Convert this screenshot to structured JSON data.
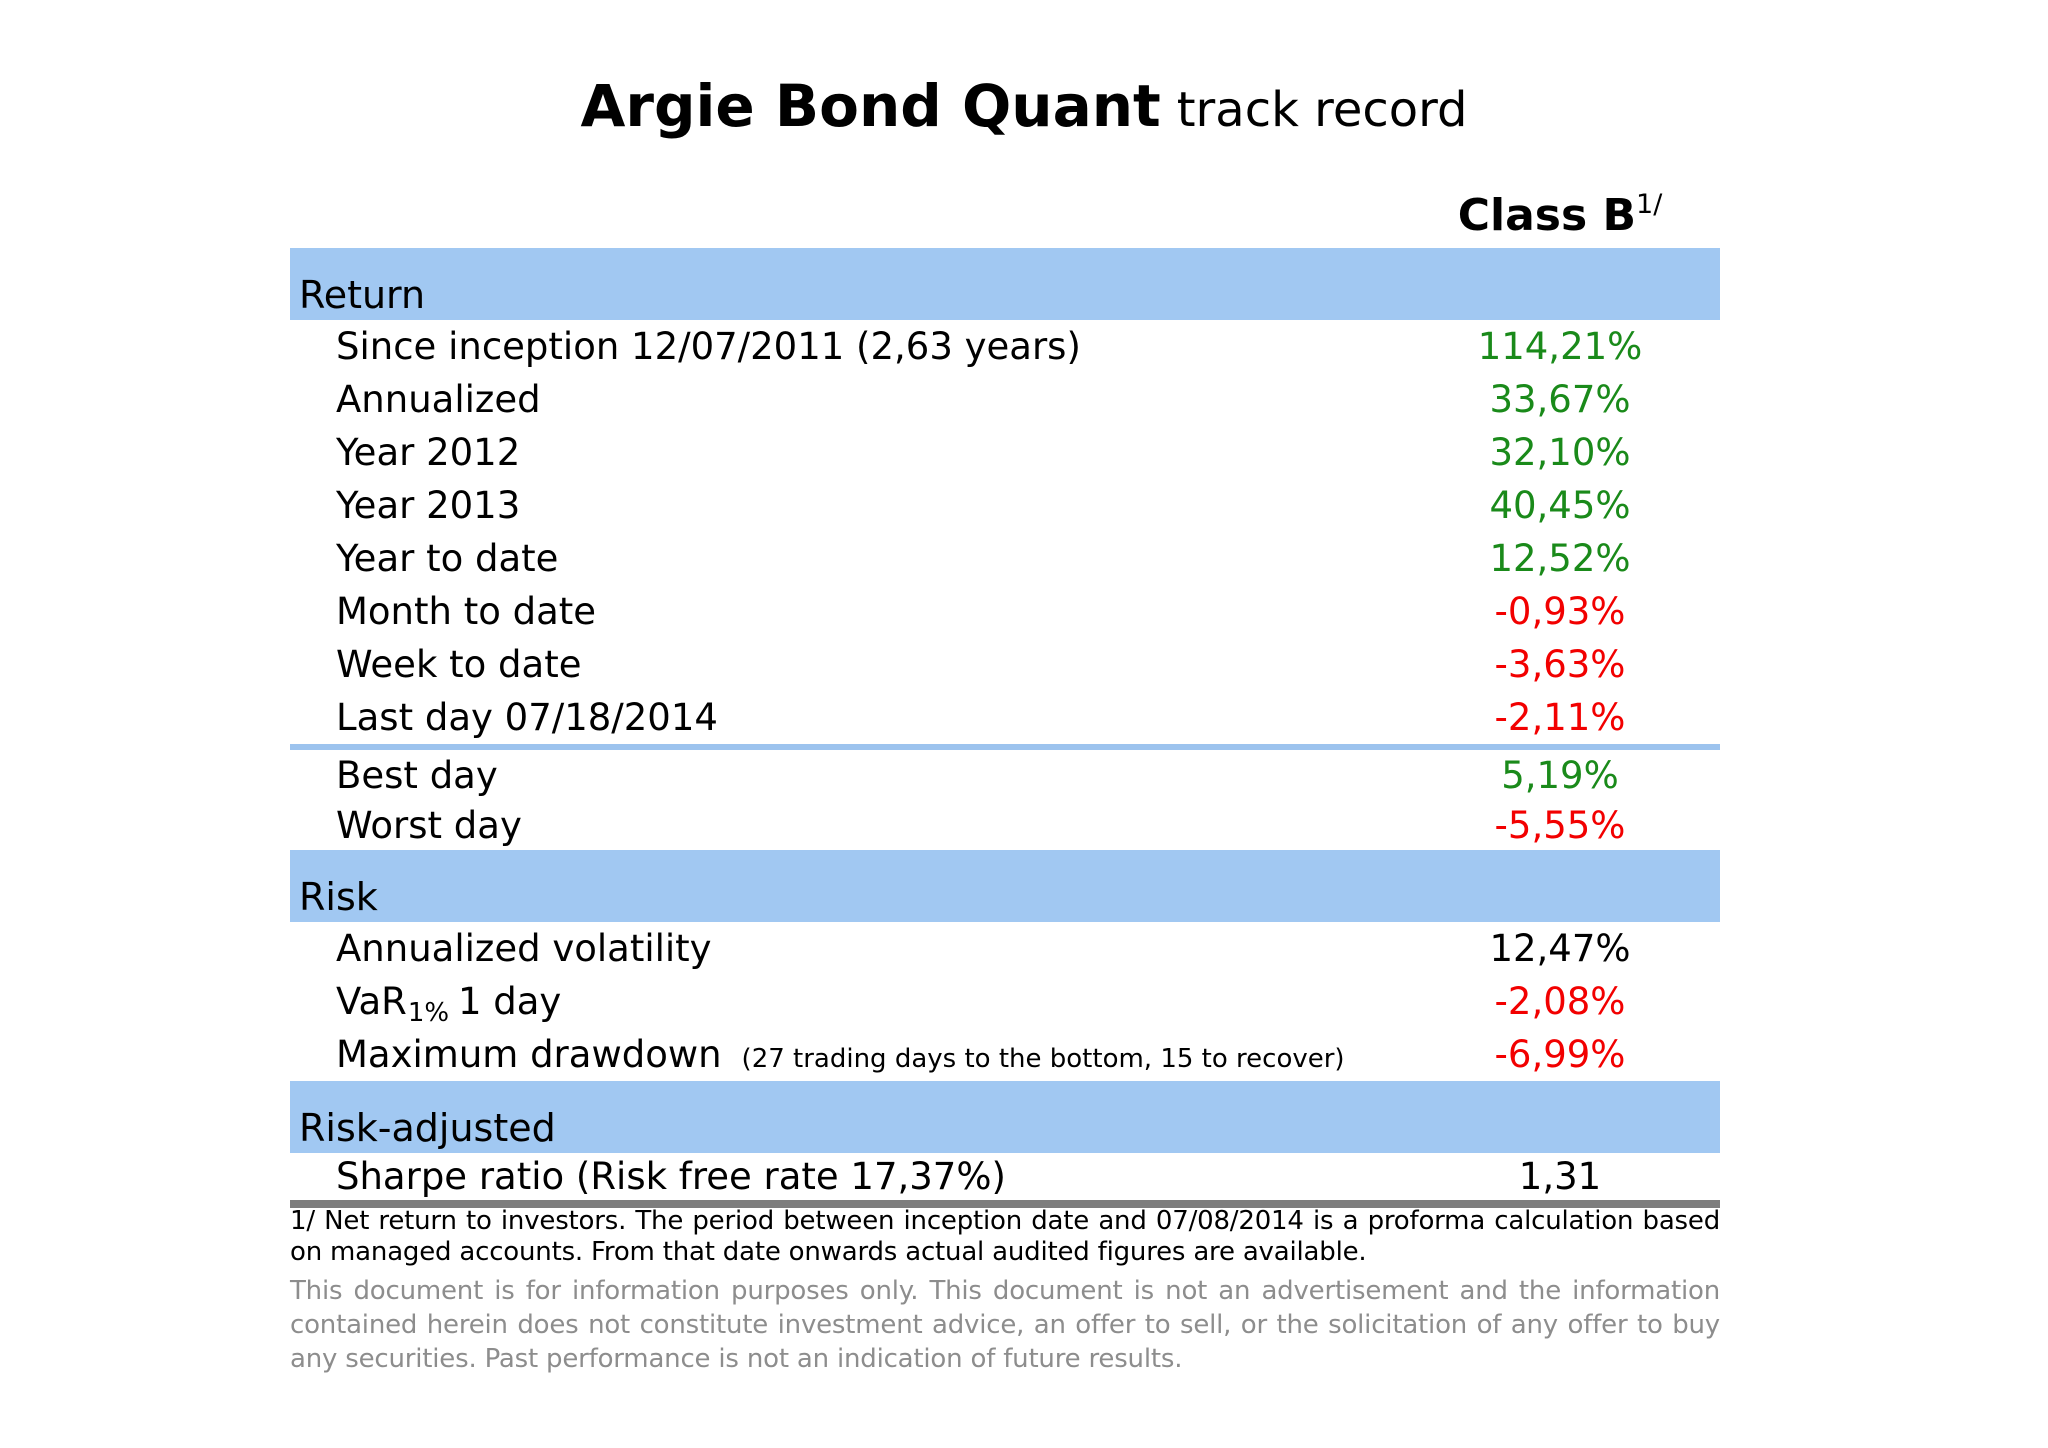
{
  "title": {
    "brand": "Argie Bond Quant",
    "suffix": "track record"
  },
  "column_header": {
    "label": "Class B",
    "footnote_ref": "1/"
  },
  "sections": [
    {
      "header": "Return",
      "rows": [
        {
          "label": "Since inception 12/07/2011 (2,63 years)",
          "value": "114,21%",
          "tone": "positive"
        },
        {
          "label": "Annualized",
          "value": "33,67%",
          "tone": "positive"
        },
        {
          "label": "Year 2012",
          "value": "32,10%",
          "tone": "positive"
        },
        {
          "label": "Year 2013",
          "value": "40,45%",
          "tone": "positive"
        },
        {
          "label": "Year to date",
          "value": "12,52%",
          "tone": "positive"
        },
        {
          "label": "Month to date",
          "value": "-0,93%",
          "tone": "negative"
        },
        {
          "label": "Week to date",
          "value": "-3,63%",
          "tone": "negative"
        },
        {
          "label": "Last day 07/18/2014",
          "value": "-2,11%",
          "tone": "negative"
        },
        {
          "label": "Best day",
          "value": "5,19%",
          "tone": "positive"
        },
        {
          "label": "Worst day",
          "value": "-5,55%",
          "tone": "negative"
        }
      ]
    },
    {
      "header": "Risk",
      "rows": [
        {
          "label": "Annualized volatility",
          "value": "12,47%",
          "tone": "neutral"
        },
        {
          "label_main": "VaR",
          "label_sub": "1%",
          "label_rest": "1 day",
          "value": "-2,08%",
          "tone": "negative"
        },
        {
          "label": "Maximum drawdown",
          "label_note": "(27 trading days to the bottom, 15 to recover)",
          "value": "-6,99%",
          "tone": "negative"
        }
      ]
    },
    {
      "header": "Risk-adjusted",
      "rows": [
        {
          "label": "Sharpe ratio (Risk free rate 17,37%)",
          "value": "1,31",
          "tone": "neutral"
        }
      ]
    }
  ],
  "footnote": "1/ Net return to investors. The period between inception date and 07/08/2014 is a proforma calculation based on managed accounts. From that date onwards actual audited figures are available.",
  "disclaimer": "This document is for information purposes only. This document is not an advertisement and the information contained herein does not constitute investment advice, an offer to sell, or the solicitation of any offer to buy any securities. Past performance is not an indication of future results.",
  "colors": {
    "positive_value": "#1a8a1a",
    "negative_value": "#f20000",
    "neutral_value": "#000000",
    "section_band_blue": "#a1c8f2",
    "blue_divider": "#9cc3ee",
    "dark_rule": "#7d7d7d",
    "disclaimer_gray": "#8d8d8d"
  }
}
